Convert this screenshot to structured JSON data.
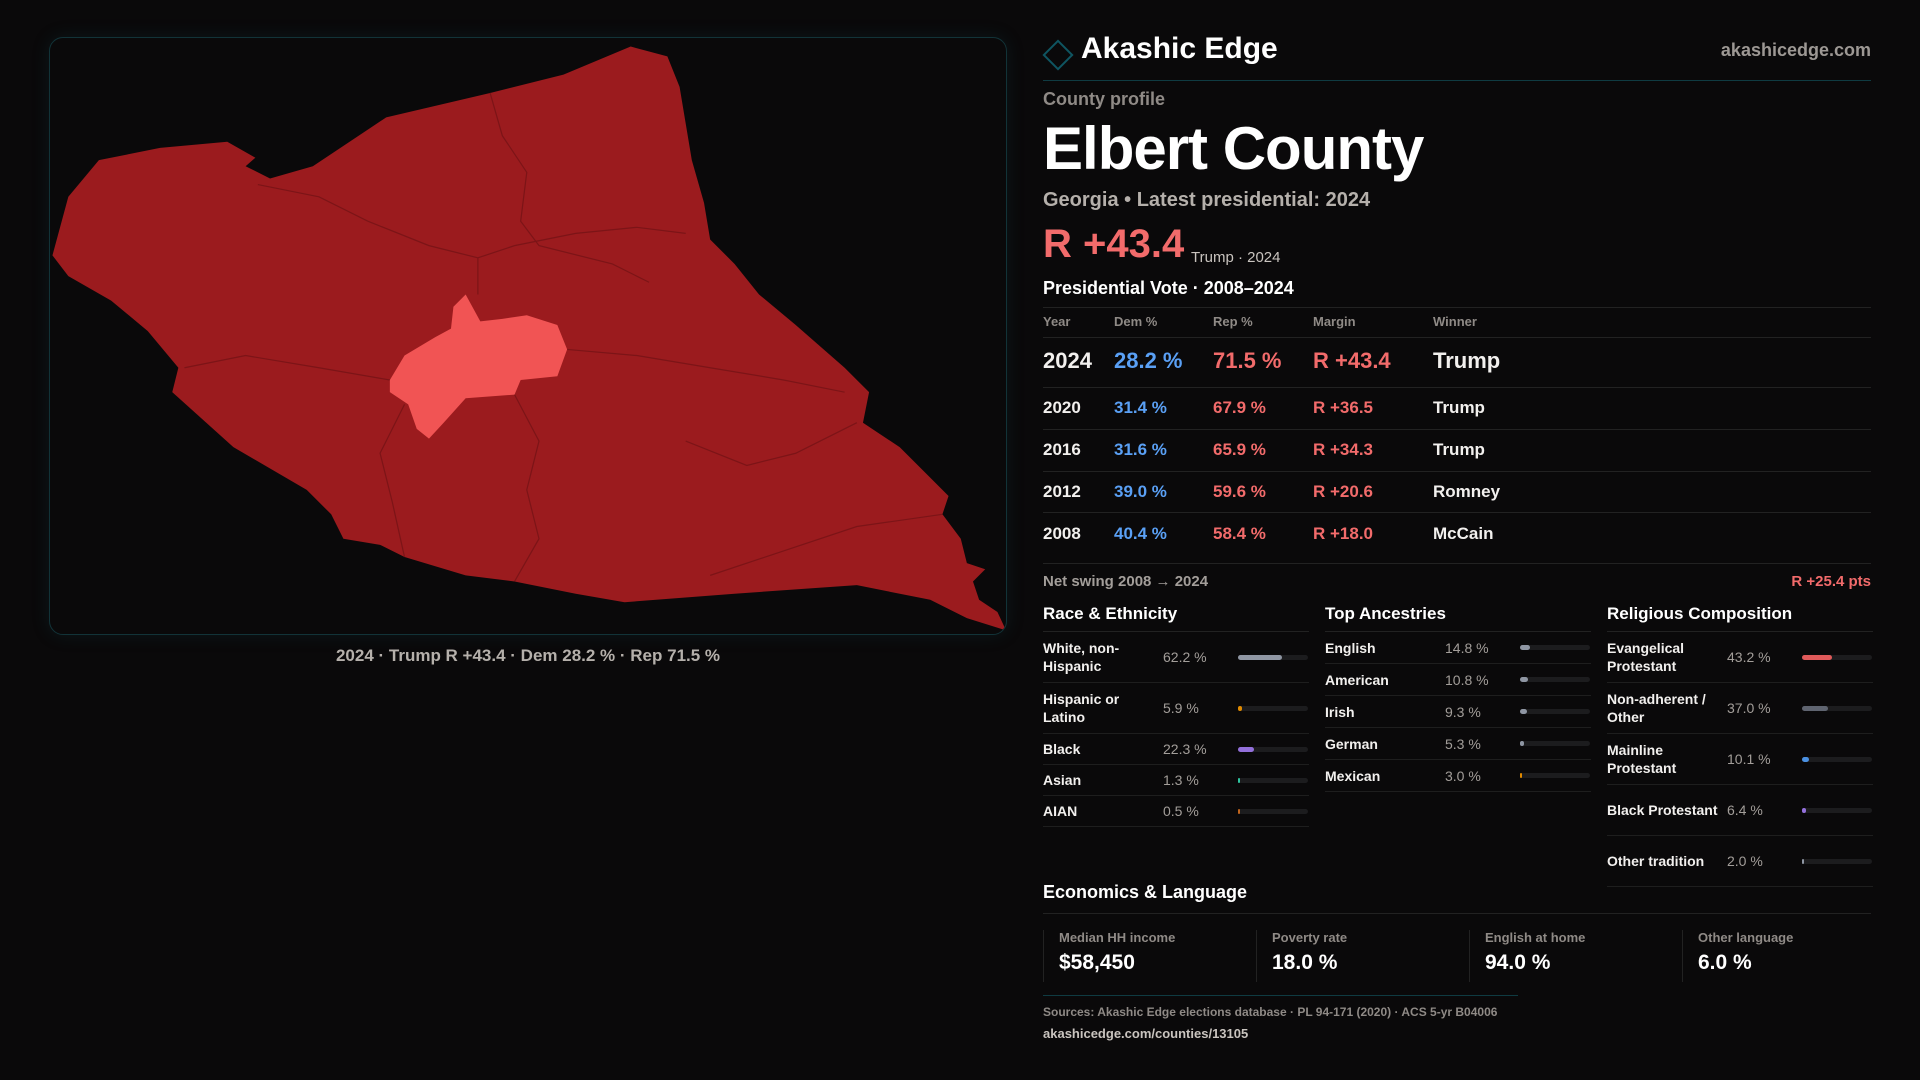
{
  "brand": {
    "name": "Akashic Edge",
    "site": "akashicedge.com"
  },
  "profile": {
    "eyebrow": "County profile",
    "title": "Elbert County",
    "subtitle": "Georgia • Latest presidential: 2024",
    "margin": "R +43.4",
    "margin_note": "Trump · 2024"
  },
  "map": {
    "caption": "2024 · Trump R +43.4 · Dem 28.2 % · Rep 71.5 %",
    "county_color": "#9b1b1e",
    "highlight_color": "#f15454"
  },
  "vote": {
    "title": "Presidential Vote · 2008–2024",
    "headers": [
      "Year",
      "Dem %",
      "Rep %",
      "Margin",
      "Winner"
    ],
    "rows": [
      [
        "2024",
        "28.2 %",
        "71.5 %",
        "R +43.4",
        "Trump"
      ],
      [
        "2020",
        "31.4 %",
        "67.9 %",
        "R +36.5",
        "Trump"
      ],
      [
        "2016",
        "31.6 %",
        "65.9 %",
        "R +34.3",
        "Trump"
      ],
      [
        "2012",
        "39.0 %",
        "59.6 %",
        "R +20.6",
        "Romney"
      ],
      [
        "2008",
        "40.4 %",
        "58.4 %",
        "R +18.0",
        "McCain"
      ]
    ],
    "swing_label": "Net swing 2008 → 2024",
    "swing_value": "R +25.4 pts"
  },
  "race": {
    "title": "Race & Ethnicity",
    "items": [
      {
        "label": "White, non-Hispanic",
        "value": "62.2 %",
        "pct": 62.2,
        "color": "#8f96a3"
      },
      {
        "label": "Hispanic or Latino",
        "value": "5.9 %",
        "pct": 5.9,
        "color": "#e08a00"
      },
      {
        "label": "Black",
        "value": "22.3 %",
        "pct": 22.3,
        "color": "#9370db"
      },
      {
        "label": "Asian",
        "value": "1.3 %",
        "pct": 1.3,
        "color": "#2ec4a0"
      },
      {
        "label": "AIAN",
        "value": "0.5 %",
        "pct": 0.5,
        "color": "#c0641c"
      }
    ]
  },
  "ancestry": {
    "title": "Top Ancestries",
    "items": [
      {
        "label": "English",
        "value": "14.8 %",
        "pct": 14.8,
        "color": "#8f96a3"
      },
      {
        "label": "American",
        "value": "10.8 %",
        "pct": 10.8,
        "color": "#8f96a3"
      },
      {
        "label": "Irish",
        "value": "9.3 %",
        "pct": 9.3,
        "color": "#8f96a3"
      },
      {
        "label": "German",
        "value": "5.3 %",
        "pct": 5.3,
        "color": "#8f96a3"
      },
      {
        "label": "Mexican",
        "value": "3.0 %",
        "pct": 3.0,
        "color": "#e08a00"
      }
    ]
  },
  "religion": {
    "title": "Religious Composition",
    "items": [
      {
        "label": "Evangelical Protestant",
        "value": "43.2 %",
        "pct": 43.2,
        "color": "#e05a5a"
      },
      {
        "label": "Non-adherent / Other",
        "value": "37.0 %",
        "pct": 37.0,
        "color": "#5f6470"
      },
      {
        "label": "Mainline Protestant",
        "value": "10.1 %",
        "pct": 10.1,
        "color": "#4a90e2"
      },
      {
        "label": "Black Protestant",
        "value": "6.4 %",
        "pct": 6.4,
        "color": "#9370db"
      },
      {
        "label": "Other tradition",
        "value": "2.0 %",
        "pct": 2.0,
        "color": "#8f96a3"
      }
    ]
  },
  "economics": {
    "title": "Economics & Language",
    "stats": [
      {
        "label": "Median HH income",
        "value": "$58,450"
      },
      {
        "label": "Poverty rate",
        "value": "18.0 %"
      },
      {
        "label": "English at home",
        "value": "94.0 %"
      },
      {
        "label": "Other language",
        "value": "6.0 %"
      }
    ]
  },
  "footer": {
    "sources": "Sources: Akashic Edge elections database · PL 94-171 (2020) · ACS 5-yr B04006",
    "url": "akashicedge.com/counties/13105"
  }
}
